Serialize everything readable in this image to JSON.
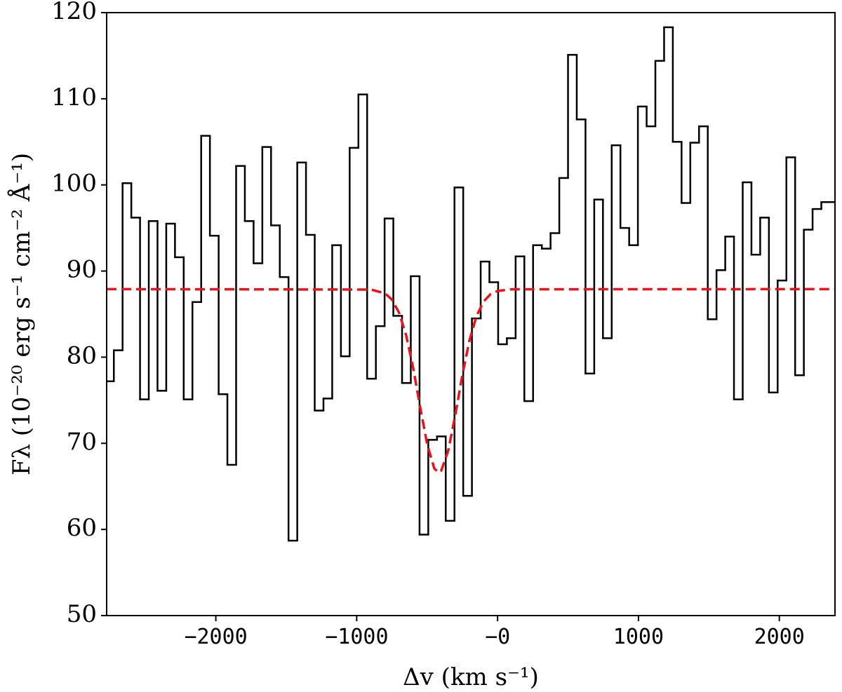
{
  "chart_data": {
    "type": "step",
    "xlabel": "Δv (km s⁻¹)",
    "ylabel": "Fλ (10⁻²⁰ erg s⁻¹ cm⁻² Å⁻¹)",
    "xlim": [
      -2775,
      2395
    ],
    "ylim": [
      50,
      120
    ],
    "xticks": [
      {
        "value": -2000,
        "label": "−2000"
      },
      {
        "value": -1000,
        "label": "−1000"
      },
      {
        "value": 0,
        "label": "−0"
      },
      1000,
      2000
    ],
    "yticks": [
      50,
      60,
      70,
      80,
      90,
      100,
      110,
      120
    ],
    "series": [
      {
        "type": "step",
        "color": "#000000",
        "bins": [
          -2775,
          -2724,
          -2662,
          -2600,
          -2538,
          -2476,
          -2414,
          -2352,
          -2290,
          -2228,
          -2166,
          -2104,
          -2042,
          -1980,
          -1918,
          -1856,
          -1794,
          -1732,
          -1670,
          -1608,
          -1546,
          -1484,
          -1422,
          -1360,
          -1298,
          -1236,
          -1174,
          -1112,
          -1050,
          -988,
          -926,
          -864,
          -802,
          -740,
          -678,
          -616,
          -554,
          -492,
          -430,
          -368,
          -306,
          -244,
          -182,
          -120,
          -58,
          4,
          66,
          128,
          190,
          252,
          314,
          376,
          438,
          500,
          562,
          624,
          686,
          748,
          810,
          872,
          934,
          996,
          1058,
          1120,
          1182,
          1244,
          1306,
          1368,
          1430,
          1492,
          1554,
          1616,
          1678,
          1740,
          1802,
          1864,
          1926,
          1988,
          2050,
          2112,
          2174,
          2236,
          2298,
          2395
        ],
        "values": [
          77.2,
          80.8,
          100.2,
          96.2,
          75.1,
          95.8,
          76.1,
          95.5,
          91.6,
          75.1,
          86.4,
          105.7,
          94.1,
          75.7,
          67.5,
          102.2,
          95.8,
          90.9,
          104.4,
          95.3,
          89.3,
          58.7,
          102.6,
          94.2,
          73.8,
          75.2,
          93.0,
          80.1,
          104.3,
          110.5,
          77.5,
          83.6,
          96.1,
          84.8,
          77.0,
          89.4,
          59.4,
          70.4,
          70.8,
          61.0,
          99.7,
          63.9,
          84.5,
          91.1,
          88.7,
          81.5,
          82.2,
          91.7,
          74.9,
          93.0,
          92.6,
          94.4,
          100.8,
          115.1,
          107.6,
          78.1,
          98.3,
          82.2,
          104.6,
          95.0,
          93.0,
          109.1,
          106.8,
          114.4,
          118.3,
          105.0,
          97.9,
          104.9,
          106.8,
          84.4,
          90.1,
          94.0,
          75.1,
          100.3,
          91.9,
          96.2,
          75.9,
          88.9,
          103.2,
          77.9,
          94.8,
          97.2,
          98.0
        ]
      },
      {
        "type": "line",
        "color": "#e8141c",
        "dashed": true,
        "x": [
          -2775,
          -900,
          -800,
          -750,
          -700,
          -650,
          -600,
          -550,
          -500,
          -450,
          -420,
          -400,
          -350,
          -300,
          -250,
          -200,
          -150,
          -100,
          -50,
          0,
          100,
          2395
        ],
        "values": [
          87.9,
          87.85,
          87.42,
          86.68,
          85.18,
          82.59,
          78.81,
          74.23,
          69.9,
          67.1,
          66.6,
          66.82,
          69.18,
          73.31,
          77.93,
          81.92,
          84.76,
          86.45,
          87.31,
          87.69,
          87.88,
          87.9
        ]
      }
    ]
  }
}
